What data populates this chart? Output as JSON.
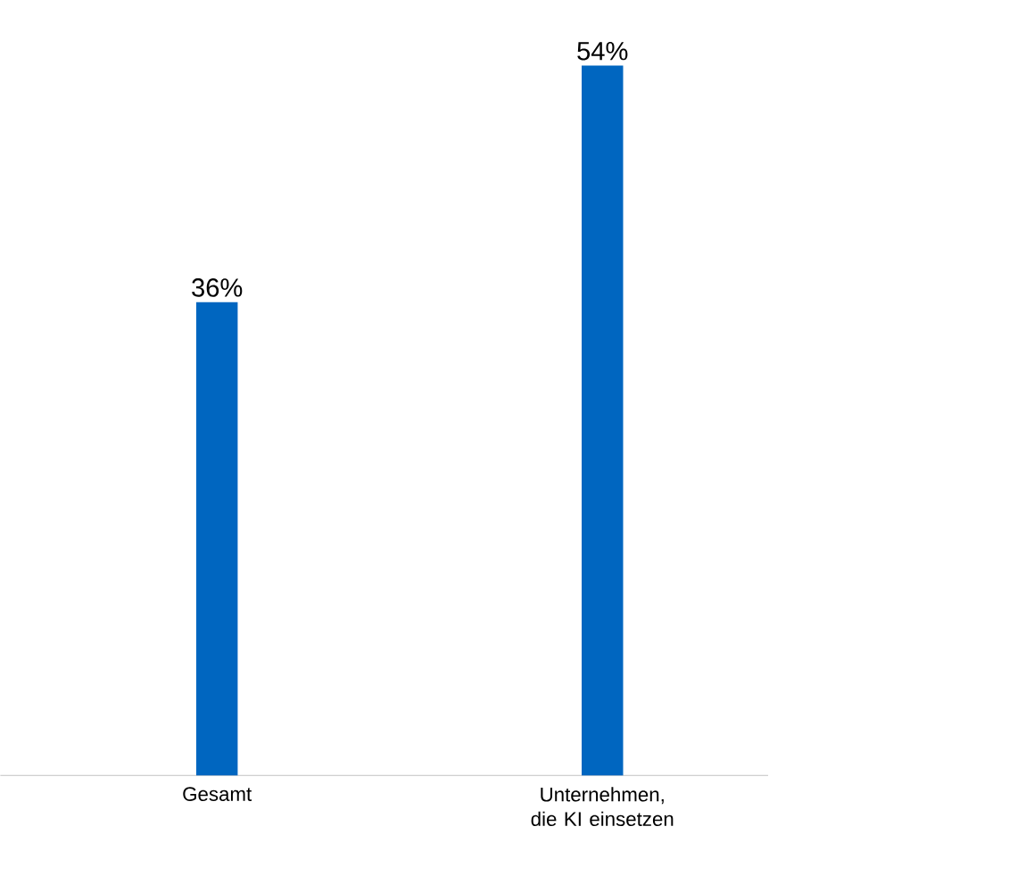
{
  "chart_data": {
    "type": "bar",
    "categories": [
      "Gesamt",
      "Unternehmen, die KI einsetzen"
    ],
    "values": [
      36,
      54
    ],
    "value_labels": [
      "36%",
      "54%"
    ],
    "color": "#0066c0"
  }
}
